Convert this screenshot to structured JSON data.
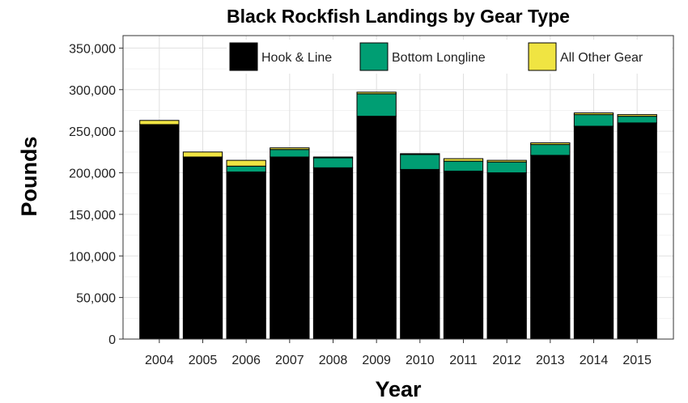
{
  "chart_data": {
    "type": "bar",
    "stacked": true,
    "title": "Black Rockfish Landings by Gear Type",
    "xlabel": "Year",
    "ylabel": "Pounds",
    "ylim": [
      0,
      365000
    ],
    "yticks": [
      0,
      50000,
      100000,
      150000,
      200000,
      250000,
      300000,
      350000
    ],
    "ytick_labels": [
      "0",
      "50,000",
      "100,000",
      "150,000",
      "200,000",
      "250,000",
      "300,000",
      "350,000"
    ],
    "grid": true,
    "legend_position": "top-right",
    "categories": [
      "2004",
      "2005",
      "2006",
      "2007",
      "2008",
      "2009",
      "2010",
      "2011",
      "2012",
      "2013",
      "2014",
      "2015"
    ],
    "series": [
      {
        "name": "Hook & Line",
        "color": "#000000",
        "values": [
          258000,
          219000,
          201000,
          219000,
          206000,
          268000,
          204000,
          202000,
          200000,
          221000,
          256000,
          260000
        ]
      },
      {
        "name": "Bottom Longline",
        "color": "#009e73",
        "values": [
          0,
          0,
          7000,
          9000,
          12000,
          27000,
          18000,
          12000,
          13000,
          13000,
          14000,
          8000
        ]
      },
      {
        "name": "All Other Gear",
        "color": "#f0e442",
        "values": [
          5000,
          6000,
          7000,
          2000,
          1000,
          2000,
          1000,
          3000,
          2000,
          2000,
          2000,
          2000
        ]
      }
    ]
  }
}
